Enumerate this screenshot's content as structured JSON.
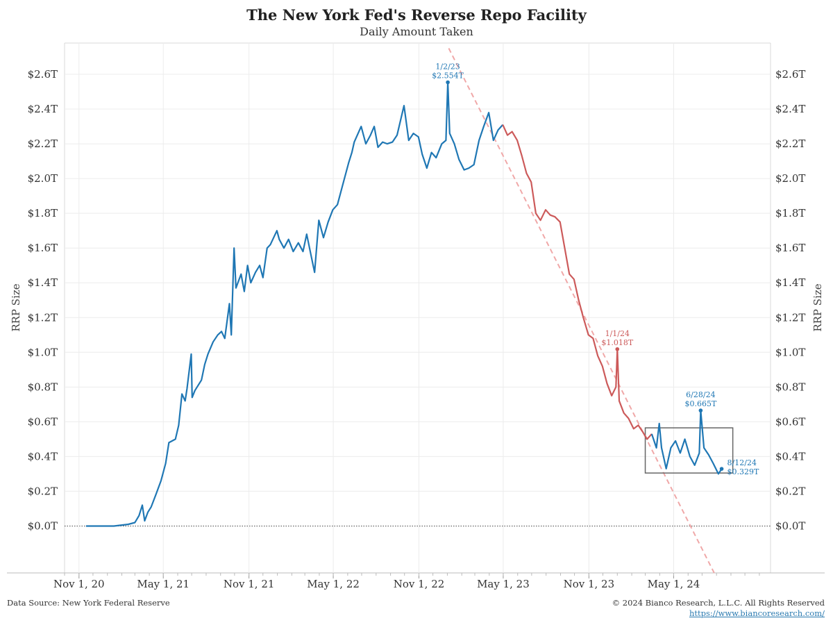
{
  "chart_data": {
    "type": "line",
    "title": "The New York Fed's Reverse Repo Facility",
    "subtitle": "Daily Amount Taken",
    "ylabel": "RRP Size",
    "ylim": [
      -0.27,
      2.78
    ],
    "xlim": [
      "2020-10-01",
      "2024-11-25"
    ],
    "grid": true,
    "y_ticks": [
      {
        "value": 0.0,
        "label": "$0.0T"
      },
      {
        "value": 0.2,
        "label": "$0.2T"
      },
      {
        "value": 0.4,
        "label": "$0.4T"
      },
      {
        "value": 0.6,
        "label": "$0.6T"
      },
      {
        "value": 0.8,
        "label": "$0.8T"
      },
      {
        "value": 1.0,
        "label": "$1.0T"
      },
      {
        "value": 1.2,
        "label": "$1.2T"
      },
      {
        "value": 1.4,
        "label": "$1.4T"
      },
      {
        "value": 1.6,
        "label": "$1.6T"
      },
      {
        "value": 1.8,
        "label": "$1.8T"
      },
      {
        "value": 2.0,
        "label": "$2.0T"
      },
      {
        "value": 2.2,
        "label": "$2.2T"
      },
      {
        "value": 2.4,
        "label": "$2.4T"
      },
      {
        "value": 2.6,
        "label": "$2.6T"
      }
    ],
    "x_ticks": [
      {
        "date": "2020-11-01",
        "label": "Nov 1, 20"
      },
      {
        "date": "2021-05-01",
        "label": "May 1, 21"
      },
      {
        "date": "2021-11-01",
        "label": "Nov 1, 21"
      },
      {
        "date": "2022-05-01",
        "label": "May 1, 22"
      },
      {
        "date": "2022-11-01",
        "label": "Nov 1, 22"
      },
      {
        "date": "2023-05-01",
        "label": "May 1, 23"
      },
      {
        "date": "2023-11-01",
        "label": "Nov 1, 23"
      },
      {
        "date": "2024-05-01",
        "label": "May 1, 24"
      }
    ],
    "series": [
      {
        "color": "#1f77b4",
        "points": [
          [
            "2020-11-16",
            0.0
          ],
          [
            "2021-01-15",
            0.0
          ],
          [
            "2021-02-15",
            0.01
          ],
          [
            "2021-03-01",
            0.02
          ],
          [
            "2021-03-10",
            0.06
          ],
          [
            "2021-03-17",
            0.12
          ],
          [
            "2021-03-22",
            0.03
          ],
          [
            "2021-03-29",
            0.08
          ],
          [
            "2021-04-05",
            0.11
          ],
          [
            "2021-04-15",
            0.18
          ],
          [
            "2021-04-26",
            0.26
          ],
          [
            "2021-05-06",
            0.36
          ],
          [
            "2021-05-13",
            0.48
          ],
          [
            "2021-05-20",
            0.49
          ],
          [
            "2021-05-27",
            0.5
          ],
          [
            "2021-06-03",
            0.58
          ],
          [
            "2021-06-10",
            0.76
          ],
          [
            "2021-06-17",
            0.72
          ],
          [
            "2021-06-21",
            0.79
          ],
          [
            "2021-06-30",
            0.99
          ],
          [
            "2021-07-02",
            0.74
          ],
          [
            "2021-07-08",
            0.78
          ],
          [
            "2021-07-15",
            0.81
          ],
          [
            "2021-07-22",
            0.84
          ],
          [
            "2021-07-29",
            0.93
          ],
          [
            "2021-08-05",
            0.99
          ],
          [
            "2021-08-16",
            1.06
          ],
          [
            "2021-08-26",
            1.1
          ],
          [
            "2021-09-03",
            1.12
          ],
          [
            "2021-09-10",
            1.08
          ],
          [
            "2021-09-20",
            1.28
          ],
          [
            "2021-09-24",
            1.1
          ],
          [
            "2021-09-30",
            1.6
          ],
          [
            "2021-10-04",
            1.37
          ],
          [
            "2021-10-15",
            1.45
          ],
          [
            "2021-10-22",
            1.35
          ],
          [
            "2021-10-29",
            1.5
          ],
          [
            "2021-11-05",
            1.4
          ],
          [
            "2021-11-15",
            1.46
          ],
          [
            "2021-11-24",
            1.5
          ],
          [
            "2021-12-01",
            1.43
          ],
          [
            "2021-12-10",
            1.6
          ],
          [
            "2021-12-17",
            1.62
          ],
          [
            "2021-12-31",
            1.7
          ],
          [
            "2022-01-05",
            1.65
          ],
          [
            "2022-01-15",
            1.6
          ],
          [
            "2022-01-25",
            1.65
          ],
          [
            "2022-02-04",
            1.58
          ],
          [
            "2022-02-15",
            1.63
          ],
          [
            "2022-02-25",
            1.58
          ],
          [
            "2022-03-05",
            1.68
          ],
          [
            "2022-03-15",
            1.55
          ],
          [
            "2022-03-22",
            1.46
          ],
          [
            "2022-03-31",
            1.76
          ],
          [
            "2022-04-10",
            1.66
          ],
          [
            "2022-04-20",
            1.75
          ],
          [
            "2022-04-30",
            1.82
          ],
          [
            "2022-05-10",
            1.85
          ],
          [
            "2022-05-20",
            1.95
          ],
          [
            "2022-05-27",
            2.02
          ],
          [
            "2022-06-03",
            2.09
          ],
          [
            "2022-06-10",
            2.15
          ],
          [
            "2022-06-15",
            2.21
          ],
          [
            "2022-06-30",
            2.3
          ],
          [
            "2022-07-10",
            2.2
          ],
          [
            "2022-07-20",
            2.25
          ],
          [
            "2022-07-28",
            2.3
          ],
          [
            "2022-08-05",
            2.18
          ],
          [
            "2022-08-15",
            2.21
          ],
          [
            "2022-08-25",
            2.2
          ],
          [
            "2022-09-05",
            2.21
          ],
          [
            "2022-09-15",
            2.25
          ],
          [
            "2022-09-30",
            2.42
          ],
          [
            "2022-10-10",
            2.22
          ],
          [
            "2022-10-20",
            2.26
          ],
          [
            "2022-10-31",
            2.24
          ],
          [
            "2022-11-08",
            2.14
          ],
          [
            "2022-11-18",
            2.06
          ],
          [
            "2022-11-28",
            2.15
          ],
          [
            "2022-12-08",
            2.12
          ],
          [
            "2022-12-20",
            2.2
          ],
          [
            "2022-12-29",
            2.22
          ],
          [
            "2023-01-02",
            2.554
          ],
          [
            "2023-01-06",
            2.26
          ],
          [
            "2023-01-16",
            2.2
          ],
          [
            "2023-01-26",
            2.11
          ],
          [
            "2023-02-06",
            2.05
          ],
          [
            "2023-02-16",
            2.06
          ],
          [
            "2023-02-27",
            2.08
          ],
          [
            "2023-03-10",
            2.22
          ],
          [
            "2023-03-20",
            2.3
          ],
          [
            "2023-03-31",
            2.38
          ],
          [
            "2023-04-10",
            2.22
          ],
          [
            "2023-04-20",
            2.28
          ],
          [
            "2023-04-30",
            2.31
          ]
        ]
      },
      {
        "color": "#cc5a5a",
        "points": [
          [
            "2023-04-30",
            2.31
          ],
          [
            "2023-05-10",
            2.25
          ],
          [
            "2023-05-20",
            2.27
          ],
          [
            "2023-05-31",
            2.22
          ],
          [
            "2023-06-10",
            2.13
          ],
          [
            "2023-06-20",
            2.03
          ],
          [
            "2023-06-30",
            1.98
          ],
          [
            "2023-07-10",
            1.8
          ],
          [
            "2023-07-20",
            1.76
          ],
          [
            "2023-07-31",
            1.82
          ],
          [
            "2023-08-10",
            1.79
          ],
          [
            "2023-08-20",
            1.78
          ],
          [
            "2023-08-31",
            1.75
          ],
          [
            "2023-09-10",
            1.6
          ],
          [
            "2023-09-20",
            1.45
          ],
          [
            "2023-09-30",
            1.42
          ],
          [
            "2023-10-10",
            1.3
          ],
          [
            "2023-10-20",
            1.2
          ],
          [
            "2023-10-31",
            1.1
          ],
          [
            "2023-11-10",
            1.08
          ],
          [
            "2023-11-20",
            0.98
          ],
          [
            "2023-11-30",
            0.92
          ],
          [
            "2023-12-10",
            0.82
          ],
          [
            "2023-12-20",
            0.75
          ],
          [
            "2023-12-29",
            0.8
          ],
          [
            "2024-01-01",
            1.018
          ],
          [
            "2024-01-05",
            0.72
          ],
          [
            "2024-01-15",
            0.65
          ],
          [
            "2024-01-25",
            0.62
          ],
          [
            "2024-02-05",
            0.56
          ],
          [
            "2024-02-15",
            0.58
          ],
          [
            "2024-02-25",
            0.54
          ],
          [
            "2024-03-05",
            0.5
          ],
          [
            "2024-03-15",
            0.53
          ]
        ]
      },
      {
        "color": "#1f77b4",
        "points": [
          [
            "2024-03-15",
            0.53
          ],
          [
            "2024-03-25",
            0.45
          ],
          [
            "2024-03-31",
            0.59
          ],
          [
            "2024-04-05",
            0.45
          ],
          [
            "2024-04-15",
            0.33
          ],
          [
            "2024-04-25",
            0.45
          ],
          [
            "2024-05-05",
            0.49
          ],
          [
            "2024-05-15",
            0.42
          ],
          [
            "2024-05-25",
            0.5
          ],
          [
            "2024-06-05",
            0.4
          ],
          [
            "2024-06-15",
            0.35
          ],
          [
            "2024-06-25",
            0.42
          ],
          [
            "2024-06-28",
            0.665
          ],
          [
            "2024-07-05",
            0.45
          ],
          [
            "2024-07-15",
            0.41
          ],
          [
            "2024-07-25",
            0.36
          ],
          [
            "2024-08-05",
            0.3
          ],
          [
            "2024-08-12",
            0.329
          ]
        ]
      }
    ],
    "trendline": {
      "color": "#f0a8a8",
      "points": [
        [
          "2023-01-04",
          2.75
        ],
        [
          "2024-07-27",
          -0.27
        ]
      ]
    },
    "annotations": [
      {
        "date": "2023-01-02",
        "value": 2.554,
        "label_date": "1/2/23",
        "label_value": "$2.554T",
        "color": "#1f77b4"
      },
      {
        "date": "2024-01-01",
        "value": 1.018,
        "label_date": "1/1/24",
        "label_value": "$1.018T",
        "color": "#cc5a5a"
      },
      {
        "date": "2024-06-28",
        "value": 0.665,
        "label_date": "6/28/24",
        "label_value": "$0.665T",
        "color": "#1f77b4"
      },
      {
        "date": "2024-08-12",
        "value": 0.329,
        "label_date": "8/12/24",
        "label_value": "$0.329T",
        "color": "#1f77b4"
      }
    ],
    "highlight_box": {
      "date_start": "2024-03-01",
      "date_end": "2024-09-05",
      "value_low": 0.305,
      "value_high": 0.565
    }
  },
  "footer": {
    "source": "Data Source: New York Federal Reserve",
    "copyright": "© 2024 Bianco Research, L.L.C. All Rights Reserved",
    "url": "https://www.biancoresearch.com/"
  }
}
